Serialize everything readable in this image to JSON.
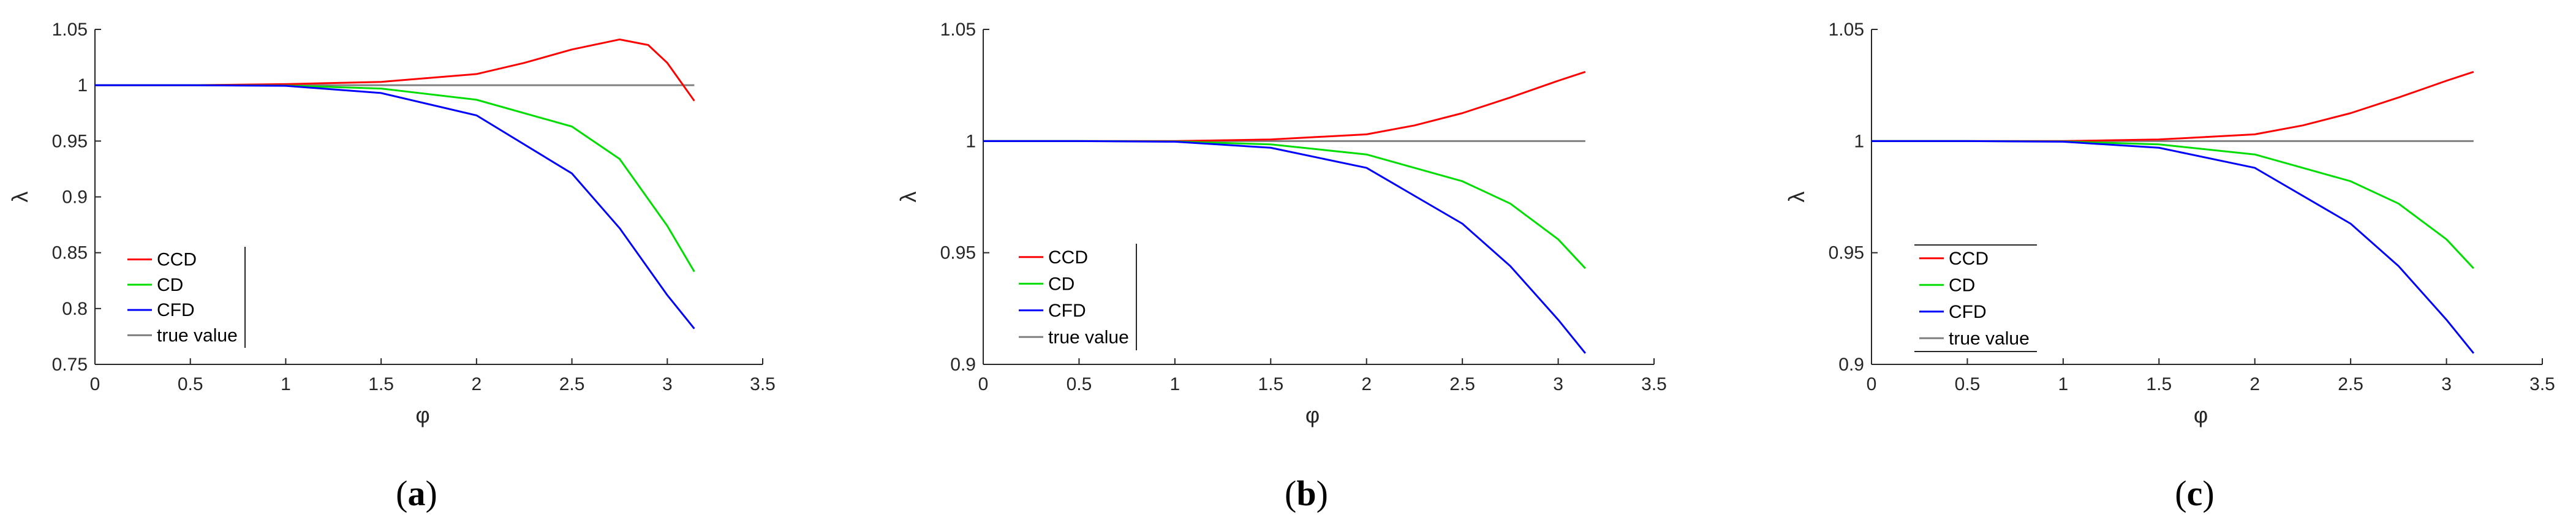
{
  "chart_data": [
    {
      "type": "line",
      "panel": "a",
      "caption": {
        "open": "(",
        "letter": "a",
        "close": ")"
      },
      "xlabel": "φ",
      "ylabel": "λ",
      "xlim": [
        0,
        3.5
      ],
      "ylim": [
        0.75,
        1.05
      ],
      "xticks": [
        0,
        0.5,
        1,
        1.5,
        2,
        2.5,
        3,
        3.5
      ],
      "xtick_labels": [
        "0",
        "0.5",
        "1",
        "1.5",
        "2",
        "2.5",
        "3",
        "3.5"
      ],
      "yticks": [
        0.75,
        0.8,
        0.85,
        0.9,
        0.95,
        1,
        1.05
      ],
      "ytick_labels": [
        "0.75",
        "0.8",
        "0.85",
        "0.9",
        "0.95",
        "1",
        "1.05"
      ],
      "legend_position": "lower-left",
      "series": [
        {
          "name": "CCD",
          "color": "#ff0000",
          "x": [
            0,
            0.5,
            1,
            1.5,
            2,
            2.25,
            2.5,
            2.75,
            2.9,
            3.0,
            3.14159
          ],
          "y": [
            1,
            1.0,
            1.001,
            1.003,
            1.01,
            1.02,
            1.032,
            1.041,
            1.036,
            1.02,
            0.986
          ]
        },
        {
          "name": "CD",
          "color": "#00dd00",
          "x": [
            0,
            0.5,
            1,
            1.5,
            2,
            2.5,
            2.75,
            3.0,
            3.14159
          ],
          "y": [
            1,
            1.0,
            0.9997,
            0.997,
            0.987,
            0.963,
            0.934,
            0.874,
            0.833
          ]
        },
        {
          "name": "CFD",
          "color": "#0000ff",
          "x": [
            0,
            0.5,
            1,
            1.5,
            2,
            2.5,
            2.75,
            3.0,
            3.14159
          ],
          "y": [
            1,
            1.0,
            0.9995,
            0.993,
            0.973,
            0.921,
            0.872,
            0.812,
            0.782
          ]
        },
        {
          "name": "true value",
          "color": "#808080",
          "x": [
            0,
            3.14159
          ],
          "y": [
            1,
            1
          ]
        }
      ]
    },
    {
      "type": "line",
      "panel": "b",
      "caption": {
        "open": "(",
        "letter": "b",
        "close": ")"
      },
      "xlabel": "φ",
      "ylabel": "λ",
      "xlim": [
        0,
        3.5
      ],
      "ylim": [
        0.9,
        1.05
      ],
      "xticks": [
        0,
        0.5,
        1,
        1.5,
        2,
        2.5,
        3,
        3.5
      ],
      "xtick_labels": [
        "0",
        "0.5",
        "1",
        "1.5",
        "2",
        "2.5",
        "3",
        "3.5"
      ],
      "yticks": [
        0.9,
        0.95,
        1,
        1.05
      ],
      "ytick_labels": [
        "0.9",
        "0.95",
        "1",
        "1.05"
      ],
      "legend_position": "lower-left",
      "series": [
        {
          "name": "CCD",
          "color": "#ff0000",
          "x": [
            0,
            0.5,
            1,
            1.5,
            2,
            2.25,
            2.5,
            2.75,
            3.0,
            3.14159
          ],
          "y": [
            1,
            1.0,
            1.0,
            1.0007,
            1.003,
            1.007,
            1.0125,
            1.0195,
            1.027,
            1.031
          ]
        },
        {
          "name": "CD",
          "color": "#00dd00",
          "x": [
            0,
            0.5,
            1,
            1.5,
            2,
            2.5,
            2.75,
            3.0,
            3.14159
          ],
          "y": [
            1,
            1.0,
            0.9998,
            0.9985,
            0.994,
            0.982,
            0.972,
            0.956,
            0.943
          ]
        },
        {
          "name": "CFD",
          "color": "#0000ff",
          "x": [
            0,
            0.5,
            1,
            1.5,
            2,
            2.5,
            2.75,
            3.0,
            3.14159
          ],
          "y": [
            1,
            1.0,
            0.9997,
            0.997,
            0.988,
            0.963,
            0.944,
            0.92,
            0.905
          ]
        },
        {
          "name": "true value",
          "color": "#808080",
          "x": [
            0,
            3.14159
          ],
          "y": [
            1,
            1
          ]
        }
      ]
    },
    {
      "type": "line",
      "panel": "c",
      "caption": {
        "open": "(",
        "letter": "c",
        "close": ")"
      },
      "xlabel": "φ",
      "ylabel": "λ",
      "xlim": [
        0,
        3.5
      ],
      "ylim": [
        0.9,
        1.05
      ],
      "xticks": [
        0,
        0.5,
        1,
        1.5,
        2,
        2.5,
        3,
        3.5
      ],
      "xtick_labels": [
        "0",
        "0.5",
        "1",
        "1.5",
        "2",
        "2.5",
        "3",
        "3.5"
      ],
      "yticks": [
        0.9,
        0.95,
        1,
        1.05
      ],
      "ytick_labels": [
        "0.9",
        "0.95",
        "1",
        "1.05"
      ],
      "legend_position": "lower-left",
      "series": [
        {
          "name": "CCD",
          "color": "#ff0000",
          "x": [
            0,
            0.5,
            1,
            1.5,
            2,
            2.25,
            2.5,
            2.75,
            3.0,
            3.14159
          ],
          "y": [
            1,
            1.0,
            1.0,
            1.0007,
            1.003,
            1.007,
            1.0125,
            1.0195,
            1.027,
            1.031
          ]
        },
        {
          "name": "CD",
          "color": "#00dd00",
          "x": [
            0,
            0.5,
            1,
            1.5,
            2,
            2.5,
            2.75,
            3.0,
            3.14159
          ],
          "y": [
            1,
            1.0,
            0.9998,
            0.9985,
            0.994,
            0.982,
            0.972,
            0.956,
            0.943
          ]
        },
        {
          "name": "CFD",
          "color": "#0000ff",
          "x": [
            0,
            0.5,
            1,
            1.5,
            2,
            2.5,
            2.75,
            3.0,
            3.14159
          ],
          "y": [
            1,
            1.0,
            0.9997,
            0.997,
            0.988,
            0.963,
            0.944,
            0.92,
            0.905
          ]
        },
        {
          "name": "true value",
          "color": "#808080",
          "x": [
            0,
            3.14159
          ],
          "y": [
            1,
            1
          ]
        }
      ]
    }
  ]
}
